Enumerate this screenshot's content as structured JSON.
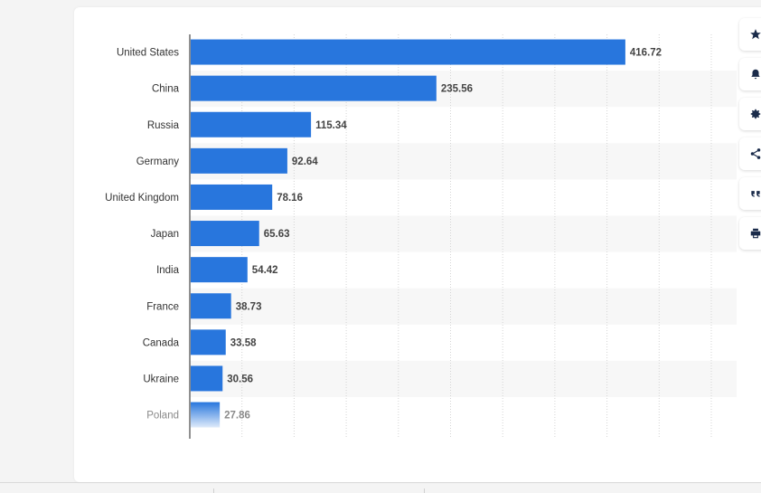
{
  "chart_data": {
    "type": "bar",
    "orientation": "horizontal",
    "categories": [
      "United States",
      "China",
      "Russia",
      "Germany",
      "United Kingdom",
      "Japan",
      "India",
      "France",
      "Canada",
      "Ukraine",
      "Poland"
    ],
    "values": [
      416.72,
      235.56,
      115.34,
      92.64,
      78.16,
      65.63,
      54.42,
      38.73,
      33.58,
      30.56,
      27.86
    ],
    "value_labels": [
      "416.72",
      "235.56",
      "115.34",
      "92.64",
      "78.16",
      "65.63",
      "54.42",
      "38.73",
      "33.58",
      "30.56",
      "27.86"
    ],
    "title": "",
    "xlabel": "",
    "ylabel": "",
    "xlim": [
      0,
      500
    ],
    "grid": true,
    "bar_color": "#2876dd",
    "faded_last_item": true
  },
  "toolbar": {
    "items": [
      {
        "icon": "star-icon",
        "action": "favorite"
      },
      {
        "icon": "bell-icon",
        "action": "notifications"
      },
      {
        "icon": "gear-icon",
        "action": "settings"
      },
      {
        "icon": "share-icon",
        "action": "share"
      },
      {
        "icon": "quote-icon",
        "action": "cite"
      },
      {
        "icon": "print-icon",
        "action": "print"
      }
    ]
  }
}
